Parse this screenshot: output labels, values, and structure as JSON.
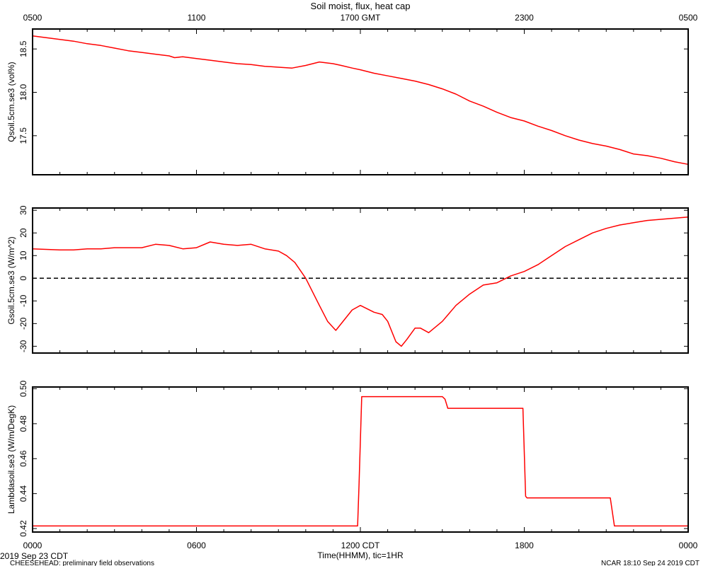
{
  "title": "Soil moist, flux, heat cap",
  "top_axis": {
    "labels": [
      "0500",
      "1100",
      "1700 GMT",
      "2300",
      "0500"
    ]
  },
  "bottom_axis": {
    "labels": [
      "0000",
      "0600",
      "1200 CDT",
      "1800",
      "0000"
    ],
    "xlabel": "Time(HHMM), tic=1HR"
  },
  "footer": {
    "date": "2019 Sep 23 CDT",
    "project": "CHEESEHEAD: preliminary field observations",
    "stamp": "NCAR 18:10 Sep 24 2019 CDT"
  },
  "colors": {
    "series": "#ff0000",
    "axis": "#000000",
    "zero_line": "#000000"
  },
  "chart_data": [
    {
      "type": "line",
      "ylabel": "Qsoil.5cm.se3 (vol%)",
      "ylim": [
        17.05,
        18.73
      ],
      "yticks": [
        17.5,
        18.0,
        18.5
      ],
      "ytick_labels": [
        "17.5",
        "18.0",
        "18.5"
      ],
      "xlim": [
        0,
        24
      ],
      "series": [
        {
          "x": [
            0,
            0.5,
            1,
            1.5,
            2,
            2.5,
            3,
            3.5,
            4,
            4.5,
            5,
            5.2,
            5.5,
            6,
            6.5,
            7,
            7.5,
            8,
            8.5,
            9,
            9.5,
            10,
            10.5,
            11,
            11.3,
            11.7,
            12,
            12.5,
            13,
            13.5,
            14,
            14.5,
            15,
            15.5,
            16,
            16.5,
            17,
            17.5,
            18,
            18.5,
            19,
            19.5,
            20,
            20.5,
            21,
            21.5,
            22,
            22.5,
            23,
            23.5,
            24
          ],
          "y": [
            18.65,
            18.63,
            18.61,
            18.59,
            18.56,
            18.54,
            18.51,
            18.48,
            18.46,
            18.44,
            18.42,
            18.4,
            18.41,
            18.39,
            18.37,
            18.35,
            18.33,
            18.32,
            18.3,
            18.29,
            18.28,
            18.31,
            18.35,
            18.33,
            18.31,
            18.28,
            18.26,
            18.22,
            18.19,
            18.16,
            18.13,
            18.09,
            18.04,
            17.98,
            17.9,
            17.84,
            17.77,
            17.71,
            17.67,
            17.61,
            17.56,
            17.5,
            17.45,
            17.41,
            17.38,
            17.34,
            17.29,
            17.27,
            17.24,
            17.2,
            17.17
          ]
        }
      ]
    },
    {
      "type": "line",
      "ylabel": "Gsoil.5cm.se3 (W/m^2)",
      "ylim": [
        -33,
        31
      ],
      "yticks": [
        -30,
        -20,
        -10,
        0,
        10,
        20,
        30
      ],
      "ytick_labels": [
        "-30",
        "-20",
        "-10",
        "0",
        "10",
        "20",
        "30"
      ],
      "zero_line": true,
      "xlim": [
        0,
        24
      ],
      "series": [
        {
          "x": [
            0,
            1,
            1.5,
            2,
            2.5,
            3,
            3.5,
            4,
            4.5,
            5,
            5.5,
            6,
            6.5,
            7,
            7.5,
            8,
            8.5,
            9,
            9.3,
            9.6,
            10,
            10.5,
            10.8,
            11.1,
            11.3,
            11.7,
            12,
            12.5,
            12.8,
            13,
            13.3,
            13.5,
            13.7,
            14,
            14.2,
            14.5,
            14.7,
            15,
            15.5,
            16,
            16.5,
            17,
            17.5,
            18,
            18.5,
            19,
            19.5,
            20,
            20.5,
            21,
            21.5,
            22,
            22.5,
            23,
            23.5,
            24
          ],
          "y": [
            13,
            12.5,
            12.5,
            13,
            13,
            13.5,
            13.5,
            13.5,
            15,
            14.5,
            13,
            13.5,
            16,
            15,
            14.5,
            15,
            13,
            12,
            10,
            7,
            0,
            -12,
            -19,
            -23,
            -20,
            -14,
            -12,
            -15,
            -16,
            -19,
            -28,
            -30,
            -27,
            -22,
            -22,
            -24,
            -22,
            -19,
            -12,
            -7,
            -3,
            -2,
            1,
            3,
            6,
            10,
            14,
            17,
            20,
            22,
            23.5,
            24.5,
            25.5,
            26,
            26.5,
            27
          ]
        }
      ]
    },
    {
      "type": "line",
      "ylabel": "Lambdasoil.se3 (W/m/DegK)",
      "ylim": [
        0.418,
        0.501
      ],
      "yticks": [
        0.42,
        0.44,
        0.46,
        0.48,
        0.5
      ],
      "ytick_labels": [
        "0.42",
        "0.44",
        "0.46",
        "0.48",
        "0.50"
      ],
      "xlim": [
        0,
        24
      ],
      "series": [
        {
          "x": [
            0,
            11.9,
            11.95,
            12.05,
            15,
            15.1,
            15.2,
            17.95,
            18.05,
            18.1,
            21.15,
            21.3,
            24
          ],
          "y": [
            0.4215,
            0.4215,
            0.445,
            0.4955,
            0.4955,
            0.494,
            0.4888,
            0.4888,
            0.4385,
            0.4375,
            0.4375,
            0.4215,
            0.4215
          ]
        }
      ]
    }
  ]
}
